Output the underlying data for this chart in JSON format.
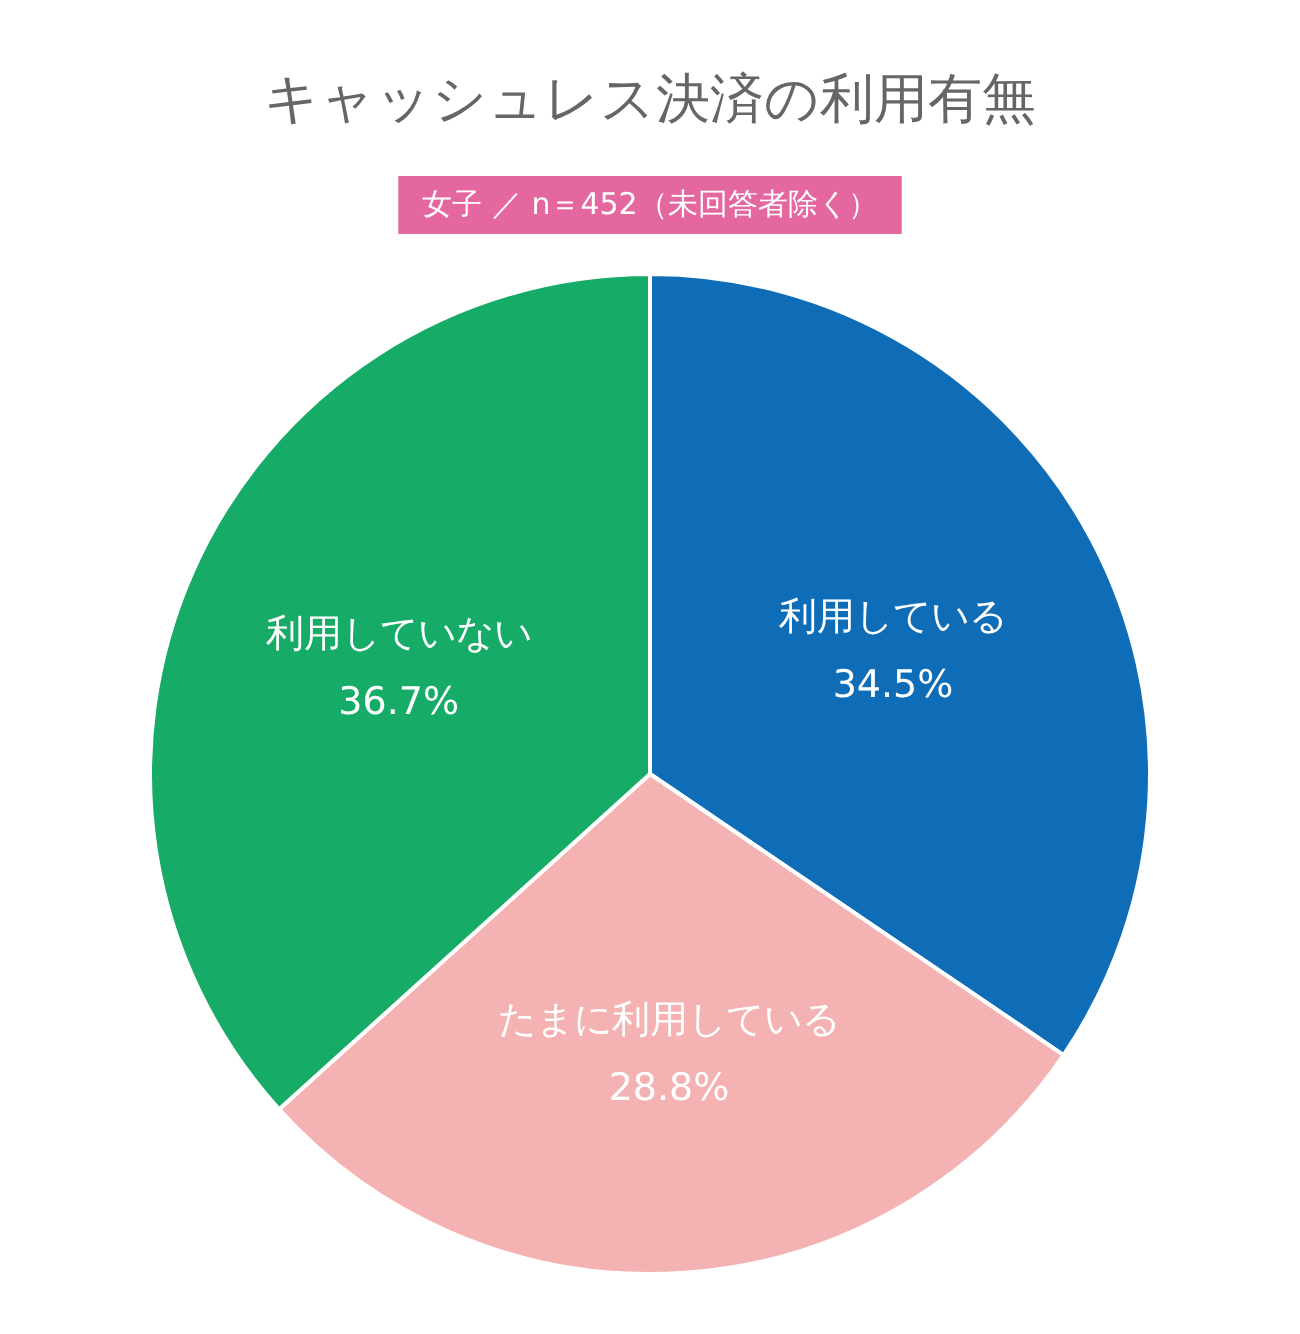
{
  "chart_data": {
    "type": "pie",
    "title": "キャッシュレス決済の利用有無",
    "subtitle": "女子 ／ n＝452（未回答者除く）",
    "categories": [
      "利用している",
      "たまに利用している",
      "利用していない"
    ],
    "values": [
      34.5,
      28.8,
      36.7
    ],
    "value_labels": [
      "34.5%",
      "28.8%",
      "36.7%"
    ],
    "colors": [
      "#0f6db8",
      "#f4b2b2",
      "#16ac67"
    ]
  }
}
